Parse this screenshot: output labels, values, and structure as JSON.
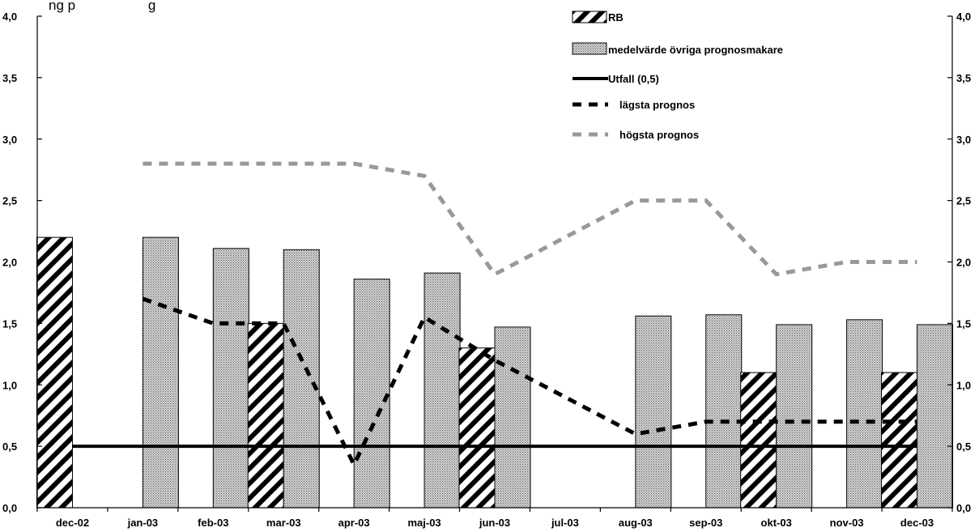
{
  "header_fragment": "ng p                   g",
  "colors": {
    "rb": "#000000",
    "medel_fill": "#bdbdbd",
    "utfall": "#000000",
    "lagsta": "#000000",
    "hogsta": "#999999"
  },
  "chart_data": {
    "type": "bar",
    "categories": [
      "dec-02",
      "jan-03",
      "feb-03",
      "mar-03",
      "apr-03",
      "maj-03",
      "jun-03",
      "jul-03",
      "aug-03",
      "sep-03",
      "okt-03",
      "nov-03",
      "dec-03"
    ],
    "ylim": [
      0,
      4
    ],
    "yticks": [
      "0,0",
      "0,5",
      "1,0",
      "1,5",
      "2,0",
      "2,5",
      "3,0",
      "3,5",
      "4,0"
    ],
    "legend_position": "top-right",
    "grid": false,
    "series": [
      {
        "name": "RB",
        "kind": "bar-hatched",
        "values": [
          2.2,
          null,
          null,
          1.5,
          null,
          null,
          1.3,
          null,
          null,
          null,
          1.1,
          null,
          1.1
        ]
      },
      {
        "name": "medelvärde övriga prognosmakare",
        "kind": "bar-dotted",
        "values": [
          null,
          2.2,
          2.11,
          2.1,
          1.86,
          1.91,
          1.47,
          null,
          1.56,
          1.57,
          1.49,
          1.53,
          1.49
        ]
      },
      {
        "name": "Utfall (0,5)",
        "kind": "line-solid",
        "values": [
          0.5,
          0.5,
          0.5,
          0.5,
          0.5,
          0.5,
          0.5,
          0.5,
          0.5,
          0.5,
          0.5,
          0.5,
          0.5
        ]
      },
      {
        "name": "lägsta prognos",
        "kind": "line-dashed",
        "values": [
          null,
          1.7,
          1.5,
          1.5,
          0.35,
          1.55,
          1.2,
          0.9,
          0.6,
          0.7,
          0.7,
          0.7,
          0.7
        ]
      },
      {
        "name": "högsta prognos",
        "kind": "line-dashed-gray",
        "values": [
          null,
          2.8,
          2.8,
          2.8,
          2.8,
          2.7,
          1.9,
          2.2,
          2.5,
          2.5,
          1.9,
          2.0,
          2.0
        ]
      }
    ]
  }
}
